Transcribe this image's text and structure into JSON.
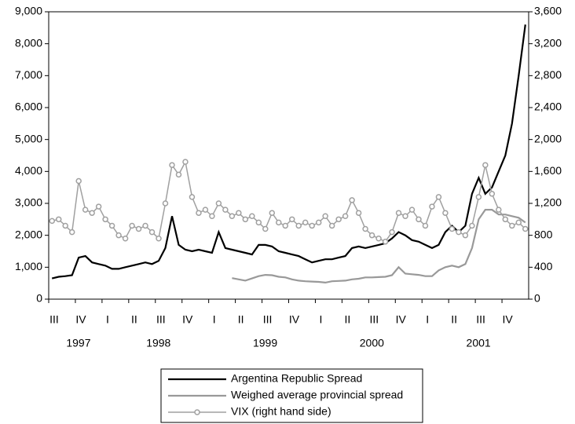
{
  "chart_data": {
    "type": "line",
    "quarters": [
      "III",
      "IV",
      "I",
      "II",
      "III",
      "IV",
      "I",
      "II",
      "III",
      "IV",
      "I",
      "II",
      "III",
      "IV",
      "I",
      "II",
      "III",
      "IV"
    ],
    "years": [
      "1997",
      "1998",
      "1999",
      "2000",
      "2001"
    ],
    "ylim": [
      0,
      9000
    ],
    "yticks": [
      0,
      {
        "value": 1000,
        "label": "1,000"
      },
      {
        "value": 2000,
        "label": "2,000"
      },
      {
        "value": 3000,
        "label": "3,000"
      },
      {
        "value": 4000,
        "label": "4,000"
      },
      {
        "value": 5000,
        "label": "5,000"
      },
      {
        "value": 6000,
        "label": "6,000"
      },
      {
        "value": 7000,
        "label": "7,000"
      },
      {
        "value": 8000,
        "label": "8,000"
      },
      {
        "value": 9000,
        "label": "9,000"
      }
    ],
    "y2lim": [
      0,
      3600
    ],
    "y2ticks": [
      0,
      400,
      800,
      {
        "value": 1200,
        "label": "1,200"
      },
      {
        "value": 1600,
        "label": "1,600"
      },
      {
        "value": 2000,
        "label": "2,000"
      },
      {
        "value": 2400,
        "label": "2,400"
      },
      {
        "value": 2800,
        "label": "2,800"
      },
      {
        "value": 3200,
        "label": "3,200"
      },
      {
        "value": 3600,
        "label": "3,600"
      }
    ],
    "series": [
      {
        "name": "Argentina Republic Spread",
        "color": "#000000",
        "width": 2.2,
        "values": [
          650,
          700,
          720,
          750,
          1300,
          1350,
          1150,
          1100,
          1050,
          950,
          950,
          1000,
          1050,
          1100,
          1150,
          1100,
          1200,
          1600,
          2600,
          1700,
          1550,
          1500,
          1550,
          1500,
          1450,
          2100,
          1600,
          1550,
          1500,
          1450,
          1400,
          1700,
          1700,
          1650,
          1500,
          1450,
          1400,
          1350,
          1250,
          1150,
          1200,
          1250,
          1250,
          1300,
          1350,
          1600,
          1650,
          1600,
          1650,
          1700,
          1750,
          1900,
          2100,
          2000,
          1850,
          1800,
          1700,
          1600,
          1700,
          2100,
          2300,
          2100,
          2300,
          3300,
          3800,
          3300,
          3500,
          4000,
          4500,
          5500,
          7000,
          8600
        ]
      },
      {
        "name": "Weighed average provincial spread",
        "color": "#999999",
        "width": 2.2,
        "values": [
          null,
          null,
          null,
          null,
          null,
          null,
          null,
          null,
          null,
          null,
          null,
          null,
          null,
          null,
          null,
          null,
          null,
          null,
          null,
          null,
          null,
          null,
          null,
          null,
          null,
          null,
          null,
          660,
          620,
          580,
          650,
          720,
          760,
          750,
          700,
          680,
          620,
          580,
          560,
          550,
          540,
          520,
          560,
          570,
          580,
          620,
          640,
          680,
          680,
          690,
          700,
          750,
          1000,
          800,
          780,
          760,
          720,
          720,
          900,
          1000,
          1050,
          1000,
          1100,
          1600,
          2500,
          2800,
          2800,
          2650,
          2650,
          2600,
          2550,
          2400
        ]
      },
      {
        "name": "VIX (right hand side)",
        "color": "#a0a0a0",
        "width": 1.5,
        "axis": "y2",
        "marker": "circle",
        "values": [
          980,
          1000,
          920,
          840,
          1480,
          1120,
          1080,
          1160,
          1000,
          920,
          800,
          760,
          920,
          880,
          920,
          840,
          760,
          1200,
          1680,
          1560,
          1720,
          1280,
          1080,
          1120,
          1040,
          1200,
          1120,
          1040,
          1080,
          1000,
          1040,
          960,
          880,
          1080,
          960,
          920,
          1000,
          920,
          960,
          920,
          960,
          1040,
          920,
          1000,
          1040,
          1240,
          1080,
          880,
          800,
          760,
          720,
          840,
          1080,
          1040,
          1120,
          1000,
          920,
          1160,
          1280,
          1080,
          880,
          840,
          800,
          920,
          1280,
          1680,
          1320,
          1120,
          1000,
          920,
          960,
          880
        ]
      }
    ]
  }
}
